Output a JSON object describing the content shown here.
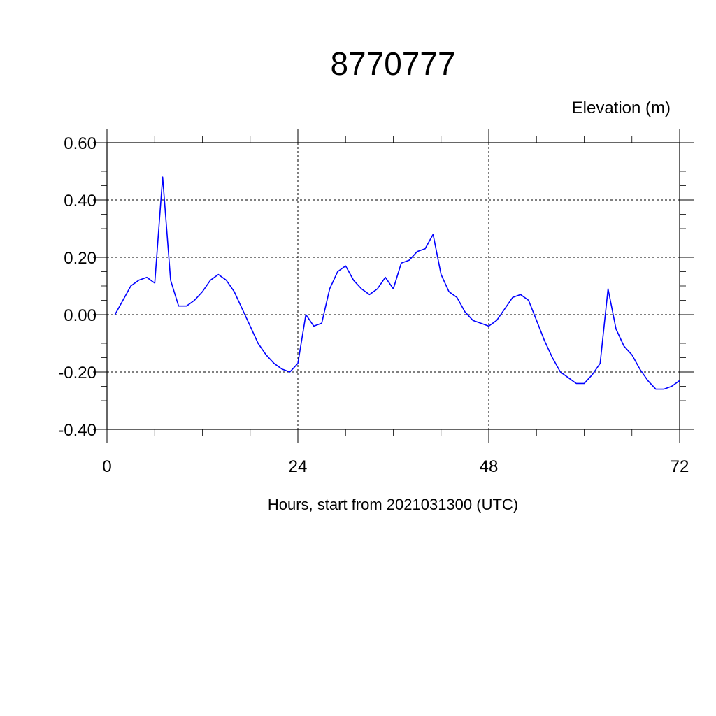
{
  "chart_data": {
    "type": "line",
    "title": "8770777",
    "ylabel": "Elevation (m)",
    "xlabel": "Hours, start from 2021031300 (UTC)",
    "xlim": [
      0,
      72
    ],
    "ylim": [
      -0.4,
      0.6
    ],
    "x_ticks": [
      0,
      24,
      48,
      72
    ],
    "x_tick_labels": [
      "0",
      "24",
      "48",
      "72"
    ],
    "y_ticks": [
      0.6,
      0.4,
      0.2,
      0.0,
      -0.2,
      -0.4
    ],
    "y_tick_labels": [
      "0.60",
      "0.40",
      "0.20",
      "0.00",
      "-0.20",
      "-0.40"
    ],
    "grid": true,
    "series": [
      {
        "color": "#0000ff",
        "x": [
          1,
          2,
          3,
          4,
          5,
          6,
          7,
          8,
          9,
          10,
          11,
          12,
          13,
          14,
          15,
          16,
          17,
          18,
          19,
          20,
          21,
          22,
          23,
          24,
          25,
          26,
          27,
          28,
          29,
          30,
          31,
          32,
          33,
          34,
          35,
          36,
          37,
          38,
          39,
          40,
          41,
          42,
          43,
          44,
          45,
          46,
          47,
          48,
          49,
          50,
          51,
          52,
          53,
          54,
          55,
          56,
          57,
          58,
          59,
          60,
          61,
          62,
          63,
          64,
          65,
          66,
          67,
          68,
          69,
          70,
          71,
          72
        ],
        "values": [
          0.0,
          0.05,
          0.1,
          0.12,
          0.13,
          0.11,
          0.48,
          0.12,
          0.03,
          0.03,
          0.05,
          0.08,
          0.12,
          0.14,
          0.12,
          0.08,
          0.02,
          -0.04,
          -0.1,
          -0.14,
          -0.17,
          -0.19,
          -0.2,
          -0.17,
          0.0,
          -0.04,
          -0.03,
          0.09,
          0.15,
          0.17,
          0.12,
          0.09,
          0.07,
          0.09,
          0.13,
          0.09,
          0.18,
          0.19,
          0.22,
          0.23,
          0.28,
          0.14,
          0.08,
          0.06,
          0.01,
          -0.02,
          -0.03,
          -0.04,
          -0.02,
          0.02,
          0.06,
          0.07,
          0.05,
          -0.02,
          -0.09,
          -0.15,
          -0.2,
          -0.22,
          -0.24,
          -0.24,
          -0.21,
          -0.17,
          0.09,
          -0.05,
          -0.11,
          -0.14,
          -0.19,
          -0.23,
          -0.26,
          -0.26,
          -0.25,
          -0.23
        ]
      }
    ]
  }
}
